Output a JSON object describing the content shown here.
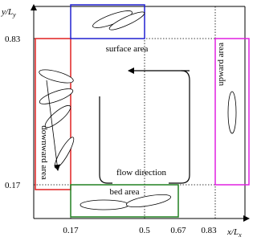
{
  "axes": {
    "y_label": "y/L",
    "y_label_sub": "y",
    "x_label": "x/L",
    "x_label_sub": "x",
    "y_ticks": [
      "0.83",
      "0.17"
    ],
    "x_ticks": [
      "0.17",
      "0.5",
      "0.67",
      "0.83"
    ]
  },
  "regions": {
    "surface": "surface area",
    "downward": "downward area",
    "upward": "upward area",
    "bed": "bed area"
  },
  "flow": "flow direction"
}
